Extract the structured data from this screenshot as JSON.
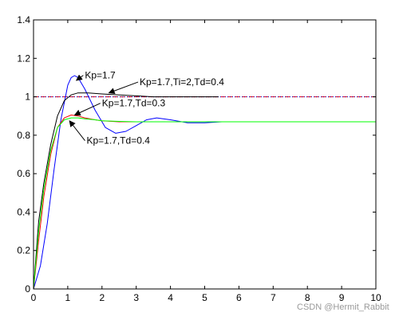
{
  "chart_data": {
    "type": "line",
    "xlim": [
      0,
      10
    ],
    "ylim": [
      0,
      1.4
    ],
    "x_ticks": [
      0,
      1,
      2,
      3,
      4,
      5,
      6,
      7,
      8,
      9,
      10
    ],
    "y_ticks": [
      0,
      0.2,
      0.4,
      0.6,
      0.8,
      1,
      1.2,
      1.4
    ],
    "x_tick_labels": [
      "0",
      "1",
      "2",
      "3",
      "4",
      "5",
      "6",
      "7",
      "8",
      "9",
      "10"
    ],
    "y_tick_labels": [
      "0",
      "0.2",
      "0.4",
      "0.6",
      "0.8",
      "1",
      "1.2",
      "1.4"
    ],
    "grid": false,
    "reference_lines": [
      {
        "y": 1,
        "color": "#ff0000",
        "style": "dashed"
      },
      {
        "y": 1,
        "color": "#0000cc",
        "style": "dotted"
      }
    ],
    "series": [
      {
        "color": "#0000ff",
        "x": [
          0,
          0.2,
          0.4,
          0.6,
          0.8,
          1.0,
          1.1,
          1.2,
          1.3,
          1.5,
          1.8,
          2.1,
          2.4,
          2.7,
          3.0,
          3.3,
          3.6,
          4.0,
          4.5,
          5.0,
          5.5,
          6.0,
          6.8
        ],
        "y": [
          0,
          0.12,
          0.34,
          0.62,
          0.88,
          1.06,
          1.1,
          1.11,
          1.1,
          1.04,
          0.93,
          0.84,
          0.81,
          0.82,
          0.85,
          0.88,
          0.89,
          0.88,
          0.865,
          0.865,
          0.87,
          0.87,
          0.87
        ]
      },
      {
        "color": "#000000",
        "x": [
          0,
          0.15,
          0.3,
          0.5,
          0.7,
          0.9,
          1.1,
          1.3,
          1.6,
          2.0,
          2.5,
          3.0,
          3.5,
          4.0,
          4.5,
          5.0,
          5.4
        ],
        "y": [
          0,
          0.35,
          0.55,
          0.75,
          0.9,
          0.98,
          1.01,
          1.02,
          1.02,
          1.015,
          1.01,
          1.005,
          1.0,
          1.0,
          1.0,
          1.0,
          1.0
        ]
      },
      {
        "color": "#ff0000",
        "x": [
          0,
          0.15,
          0.3,
          0.5,
          0.7,
          0.9,
          1.1,
          1.3,
          1.5,
          1.8,
          2.0,
          2.5,
          3.0,
          3.5,
          4.0
        ],
        "y": [
          0,
          0.25,
          0.48,
          0.7,
          0.84,
          0.89,
          0.905,
          0.9,
          0.89,
          0.88,
          0.875,
          0.87,
          0.87,
          0.87,
          0.87
        ]
      },
      {
        "color": "#00ff00",
        "x": [
          0,
          0.15,
          0.3,
          0.5,
          0.7,
          0.9,
          1.1,
          1.3,
          1.5,
          1.8,
          2.0,
          2.5,
          3.0,
          4.0,
          6.0,
          8.0,
          10.0
        ],
        "y": [
          0,
          0.3,
          0.52,
          0.72,
          0.84,
          0.88,
          0.89,
          0.89,
          0.885,
          0.88,
          0.875,
          0.872,
          0.87,
          0.87,
          0.87,
          0.87,
          0.87
        ]
      }
    ],
    "annotations": [
      {
        "text": "Kp=1.7",
        "text_x": 1.5,
        "text_y": 1.095,
        "arrow_to_x": 1.25,
        "arrow_to_y": 1.085
      },
      {
        "text": "Kp=1.7,Ti=2,Td=0.4",
        "text_x": 3.1,
        "text_y": 1.06,
        "arrow_to_x": 2.2,
        "arrow_to_y": 1.02
      },
      {
        "text": "Kp=1.7,Td=0.3",
        "text_x": 2.0,
        "text_y": 0.95,
        "arrow_to_x": 1.2,
        "arrow_to_y": 0.905
      },
      {
        "text": "Kp=1.7,Td=0.4",
        "text_x": 1.55,
        "text_y": 0.755,
        "arrow_to_x": 1.05,
        "arrow_to_y": 0.875
      }
    ]
  },
  "watermark": "CSDN @Hermit_Rabbit"
}
